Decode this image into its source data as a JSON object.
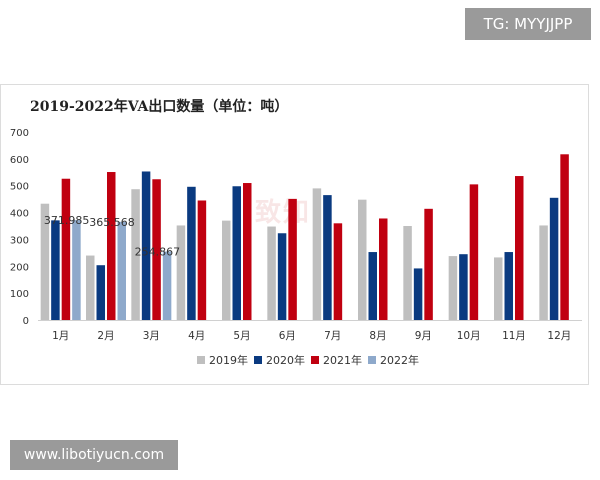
{
  "badges": {
    "tg": "TG: MYYJJPP",
    "site": "www.libotiyucn.com"
  },
  "chart_data": {
    "type": "bar",
    "title": "2019-2022年VA出口数量（单位：吨）",
    "categories": [
      "1月",
      "2月",
      "3月",
      "4月",
      "5月",
      "6月",
      "7月",
      "8月",
      "9月",
      "10月",
      "11月",
      "12月"
    ],
    "ylim": [
      0,
      700
    ],
    "yticks": [
      0,
      100,
      200,
      300,
      400,
      500,
      600,
      700
    ],
    "grid": false,
    "legend_position": "bottom",
    "series": [
      {
        "name": "2019年",
        "color": "#bfbfbf",
        "values": [
          433,
          240,
          487,
          352,
          370,
          348,
          490,
          448,
          350,
          238,
          233,
          352
        ]
      },
      {
        "name": "2020年",
        "color": "#0a3a80",
        "values": [
          371,
          204,
          553,
          496,
          498,
          323,
          465,
          253,
          192,
          245,
          253,
          455
        ]
      },
      {
        "name": "2021年",
        "color": "#c00010",
        "values": [
          526,
          551,
          524,
          445,
          510,
          451,
          360,
          378,
          414,
          505,
          536,
          617
        ]
      },
      {
        "name": "2022年",
        "color": "#8ea9cb",
        "values": [
          371.985,
          365.568,
          254.867,
          null,
          null,
          null,
          null,
          null,
          null,
          null,
          null,
          null
        ]
      }
    ],
    "data_labels": [
      {
        "text": "371.985",
        "category": "1月",
        "value": 371.985
      },
      {
        "text": "365.568",
        "category": "2月",
        "value": 365.568
      },
      {
        "text": "254.867",
        "category": "3月",
        "value": 254.867
      }
    ]
  }
}
